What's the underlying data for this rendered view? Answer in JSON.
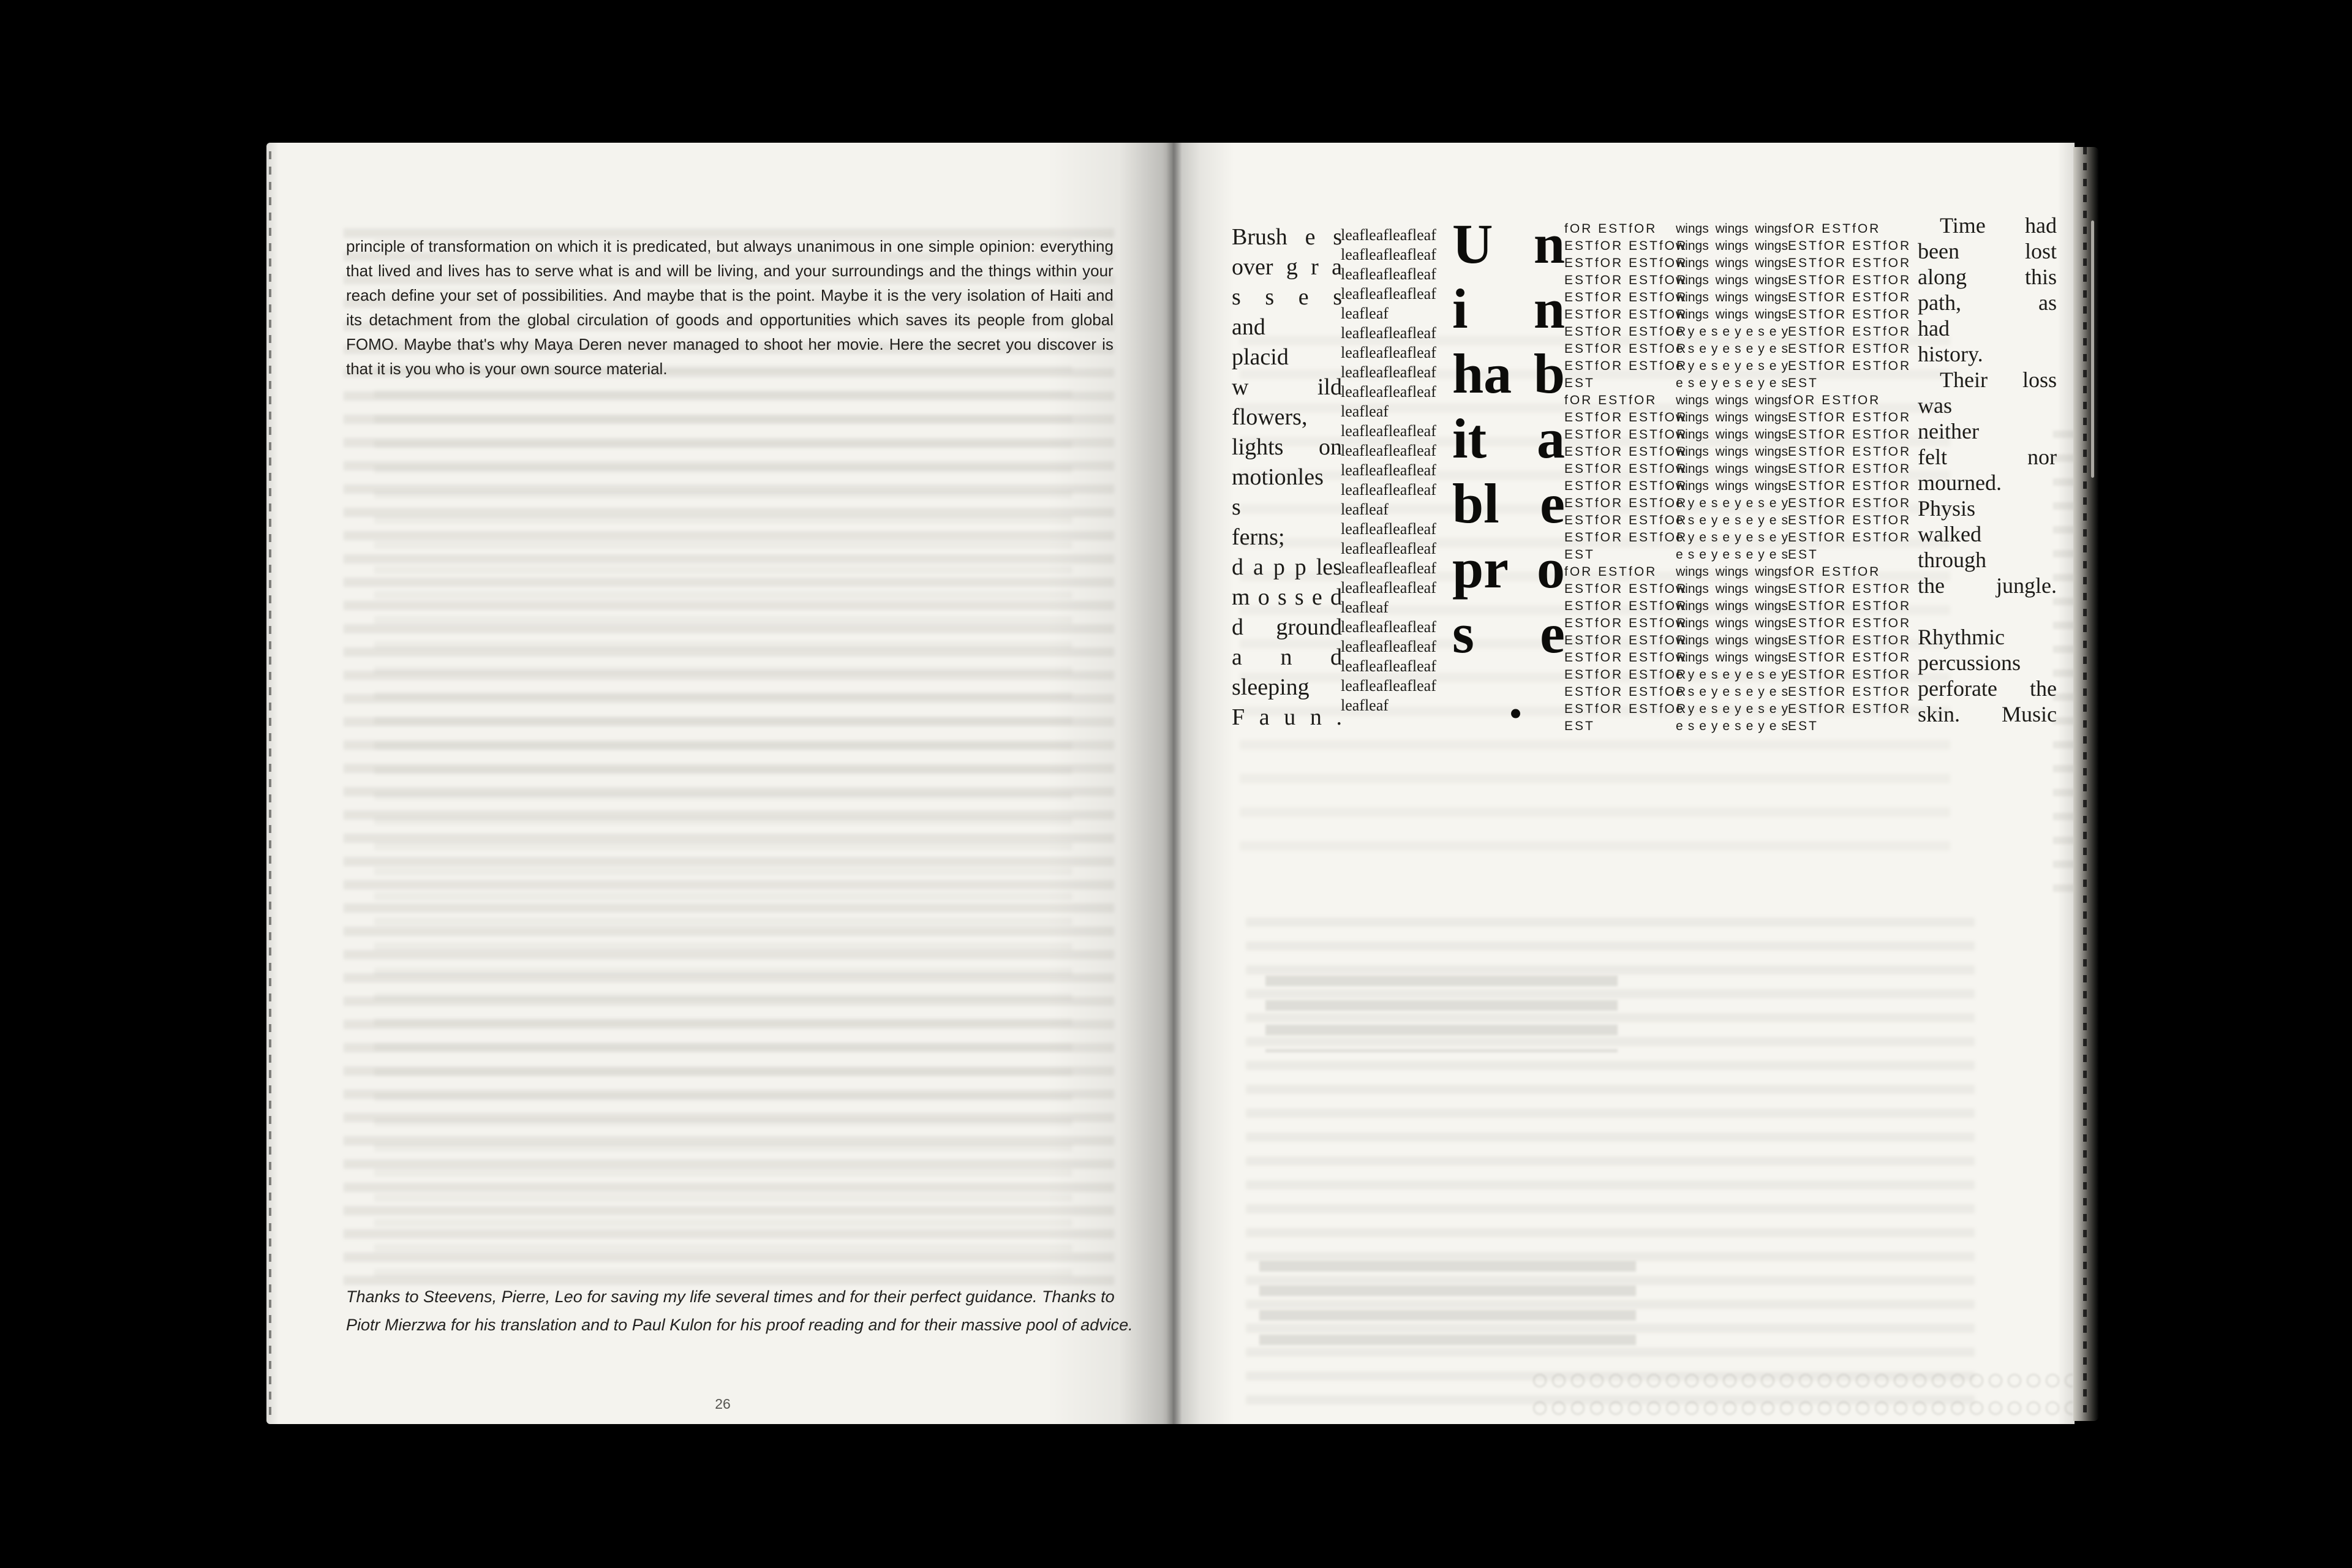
{
  "colors": {
    "background": "#000000",
    "paper_left": "#f4f3ee",
    "paper_right": "#f6f5f0",
    "ink": "#1c1b18",
    "page_number_gray": "#565550"
  },
  "left_page": {
    "paragraph_lines": [
      "principle of transformation on which it is predicated, but always unanimous in one simple opinion: everything",
      "that lived and lives has to serve what is and will be living, and your surroundings and the things within your",
      "reach define your set of possibilities. And maybe that is the point. Maybe it is the very isolation of Haiti and",
      "its detachment from the global circulation of goods and opportunities which saves its people from global",
      "FOMO. Maybe that's why Maya Deren never managed to shoot her movie. Here the secret you discover is",
      "that it is you who is your own source material."
    ],
    "acknowledgment_lines": [
      "Thanks to Steevens, Pierre, Leo for saving my life several times and for their perfect guidance. Thanks to",
      "Piotr Mierzwa for his translation and to Paul Kulon for his proof reading and for their massive pool of advice."
    ],
    "page_number": "26"
  },
  "right_page": {
    "poem_column_lines": [
      "Brush e s",
      "over g r a",
      "s s e s",
      "and",
      "placid",
      "w ild",
      "flowers,",
      "lights on",
      "motionles",
      "s",
      "ferns;",
      "d a p p les",
      "m o s s e d",
      "d ground",
      "a n d",
      "sleeping",
      "F a u n ."
    ],
    "leaf_column_lines": [
      "leafleafleafleaf",
      "leafleafleafleaf",
      "leafleafleafleaf",
      "leafleafleafleaf",
      "leafleaf",
      "leafleafleafleaf",
      "leafleafleafleaf",
      "leafleafleafleaf",
      "leafleafleafleaf",
      "leafleaf",
      "leafleafleafleaf",
      "leafleafleafleaf",
      "leafleafleafleaf",
      "leafleafleafleaf",
      "leafleaf",
      "leafleafleafleaf",
      "leafleafleafleaf",
      "leafleafleafleaf",
      "leafleafleafleaf",
      "leafleaf",
      "leafleafleafleaf",
      "leafleafleafleaf",
      "leafleafleafleaf",
      "leafleafleafleaf",
      "leafleaf"
    ],
    "title_column_lines": [
      "U n",
      "i n",
      "ha b",
      "it a",
      "bl e",
      "pr o",
      "s e",
      " ."
    ],
    "forest_column_lines": [
      "fOR ESTfOR",
      "ESTfOR ESTfOR",
      "ESTfOR ESTfOR",
      "ESTfOR ESTfOR",
      "ESTfOR ESTfOR",
      "ESTfOR ESTfOR",
      "ESTfOR ESTfOR",
      "ESTfOR ESTfOR",
      "ESTfOR ESTfOR",
      "EST",
      "fOR ESTfOR",
      "ESTfOR ESTfOR",
      "ESTfOR ESTfOR",
      "ESTfOR ESTfOR",
      "ESTfOR ESTfOR",
      "ESTfOR ESTfOR",
      "ESTfOR ESTfOR",
      "ESTfOR ESTfOR",
      "ESTfOR ESTfOR",
      "EST",
      "fOR ESTfOR",
      "ESTfOR ESTfOR",
      "ESTfOR ESTfOR",
      "ESTfOR ESTfOR",
      "ESTfOR ESTfOR",
      "ESTfOR ESTfOR",
      "ESTfOR ESTfOR",
      "ESTfOR ESTfOR",
      "ESTfOR ESTfOR",
      "EST"
    ],
    "wings_column_lines": [
      "wings wings wings",
      "wings wings wings",
      "wings wings wings",
      "wings wings wings",
      "wings wings wings",
      "wings wings wings",
      "e y e s e y e s e y",
      "e s e y e s e y e s",
      "e y e s e y e s e y",
      "e s e y e s e y e s",
      "wings wings wings",
      "wings wings wings",
      "wings wings wings",
      "wings wings wings",
      "wings wings wings",
      "wings wings wings",
      "e y e s e y e s e y",
      "e s e y e s e y e s",
      "e y e s e y e s e y",
      "e s e y e s e y e s",
      "wings wings wings",
      "wings wings wings",
      "wings wings wings",
      "wings wings wings",
      "wings wings wings",
      "wings wings wings",
      "e y e s e y e s e y",
      "e s e y e s e y e s",
      "e y e s e y e s e y",
      "e s e y e s e y e s"
    ],
    "prose_column_lines": [
      " Time had",
      "been lost",
      "along this",
      "path, as",
      "had",
      "history.",
      " Their loss",
      "was",
      "neither",
      "felt nor",
      "mourned.",
      "Physis",
      "walked",
      "through",
      "the jungle.",
      "",
      "Rhythmic",
      "percussions",
      "perforate the",
      "skin. Music"
    ]
  }
}
